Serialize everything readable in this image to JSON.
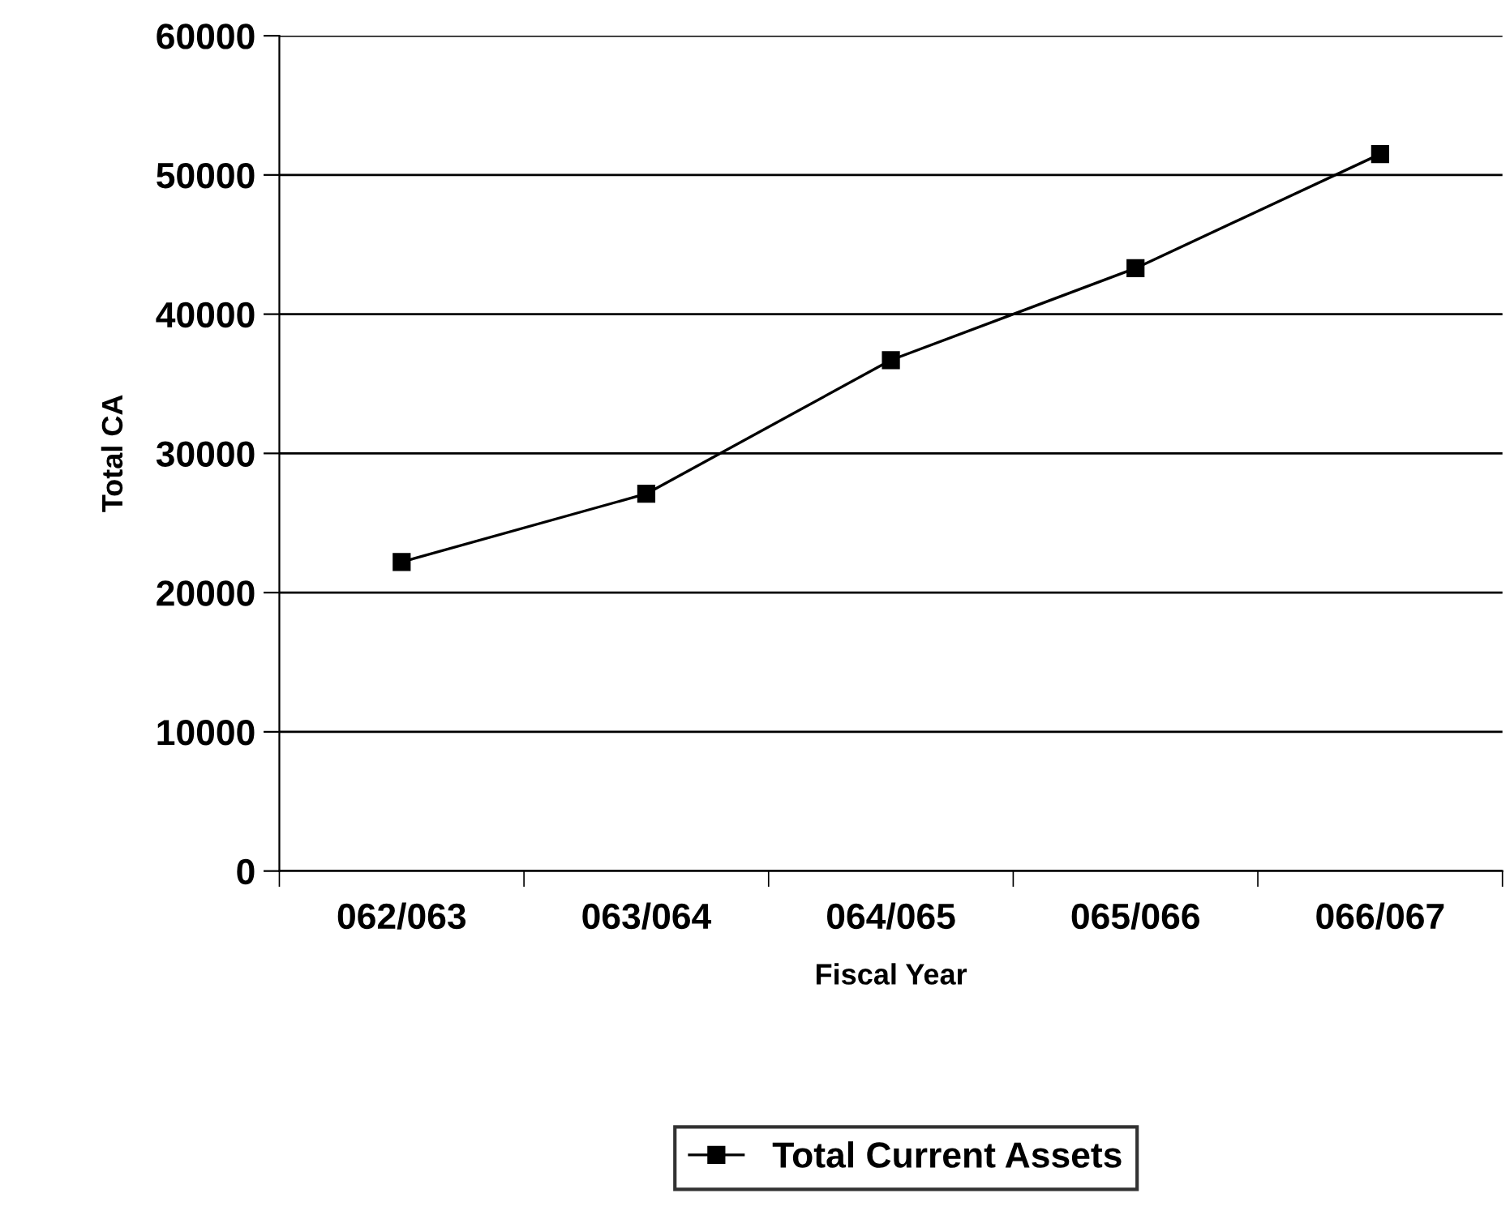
{
  "chart_data": {
    "type": "line",
    "xlabel": "Fiscal Year",
    "ylabel": "Total CA",
    "categories": [
      "062/063",
      "063/064",
      "064/065",
      "065/066",
      "066/067"
    ],
    "series": [
      {
        "name": "Total Current Assets",
        "color": "#000000",
        "values": [
          22200,
          27100,
          36700,
          43300,
          51500
        ]
      }
    ],
    "ylim": [
      0,
      60000
    ],
    "yticks": [
      0,
      10000,
      20000,
      30000,
      40000,
      50000,
      60000
    ],
    "grid": "y",
    "legend": "bottom",
    "marker": "square",
    "line_style": "solid"
  }
}
